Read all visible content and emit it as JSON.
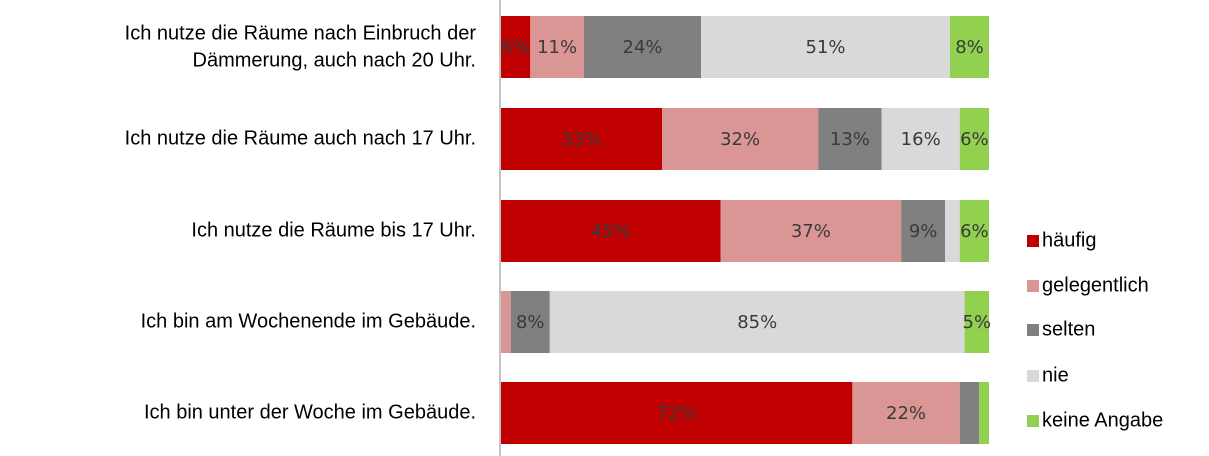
{
  "chart_data": {
    "type": "stacked-bar-horizontal",
    "categories": [
      [
        "Ich nutze die Räume nach Einbruch der",
        "Dämmerung, auch nach 20 Uhr."
      ],
      "Ich nutze die Räume auch nach 17 Uhr.",
      "Ich nutze die Räume bis 17 Uhr.",
      "Ich bin am Wochenende im Gebäude.",
      "Ich bin unter der Woche im Gebäude."
    ],
    "xlim": [
      0,
      100
    ],
    "series": [
      {
        "name": "häufig",
        "color": "#c00000",
        "values": [
          6,
          33,
          45,
          0,
          72
        ],
        "value_labels": [
          "6%",
          "33%",
          "45%",
          null,
          "72%"
        ]
      },
      {
        "name": "gelegentlich",
        "color": "#d99694",
        "values": [
          11,
          32,
          37,
          2,
          22
        ],
        "value_labels": [
          "11%",
          "32%",
          "37%",
          null,
          "22%"
        ]
      },
      {
        "name": "selten",
        "color": "#808080",
        "values": [
          24,
          13,
          9,
          8,
          4
        ],
        "value_labels": [
          "24%",
          "13%",
          "9%",
          "8%",
          null
        ]
      },
      {
        "name": "nie",
        "color": "#d9d9d9",
        "values": [
          51,
          16,
          3,
          85,
          0
        ],
        "value_labels": [
          "51%",
          "16%",
          null,
          "85%",
          null
        ]
      },
      {
        "name": "keine Angabe",
        "color": "#92d050",
        "values": [
          8,
          6,
          6,
          5,
          2
        ],
        "value_labels": [
          "8%",
          "6%",
          "6%",
          "5%",
          null
        ]
      }
    ]
  }
}
